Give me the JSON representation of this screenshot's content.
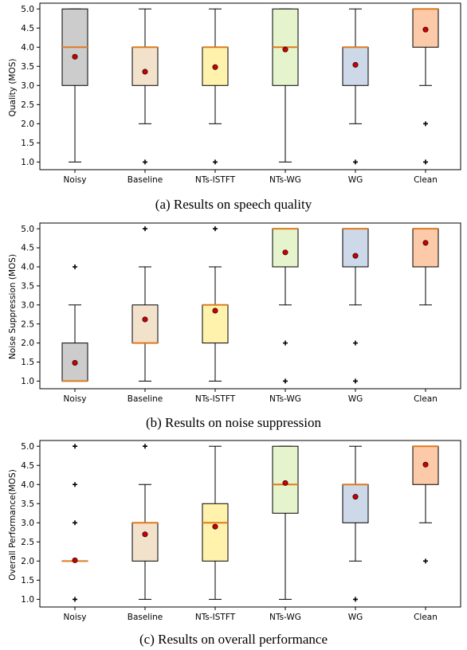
{
  "colors": {
    "box_fills": [
      "#cccccc",
      "#f2e2cc",
      "#fff2ad",
      "#e5f4cc",
      "#cdd8e8",
      "#fdcaa9"
    ],
    "median": "#e07a1c",
    "mean": "#cc0000",
    "outlier": "#000000"
  },
  "chart_data": [
    {
      "type": "box",
      "ylabel": "Quality (MOS)",
      "caption": "(a) Results on speech quality",
      "categories": [
        "Noisy",
        "Baseline",
        "NTs-ISTFT",
        "NTs-WG",
        "WG",
        "Clean"
      ],
      "ylim": [
        0.8,
        5.15
      ],
      "yticks": [
        "1.0",
        "1.5",
        "2.0",
        "2.5",
        "3.0",
        "3.5",
        "4.0",
        "4.5",
        "5.0"
      ],
      "grid": false,
      "boxes": [
        {
          "whislo": 1.0,
          "q1": 3.0,
          "med": 4.0,
          "q3": 5.0,
          "whishi": 5.0,
          "mean": 3.75,
          "fliers": []
        },
        {
          "whislo": 2.0,
          "q1": 3.0,
          "med": 4.0,
          "q3": 4.0,
          "whishi": 5.0,
          "mean": 3.36,
          "fliers": [
            1.0
          ]
        },
        {
          "whislo": 2.0,
          "q1": 3.0,
          "med": 4.0,
          "q3": 4.0,
          "whishi": 5.0,
          "mean": 3.48,
          "fliers": [
            1.0
          ]
        },
        {
          "whislo": 1.0,
          "q1": 3.0,
          "med": 4.0,
          "q3": 5.0,
          "whishi": 5.0,
          "mean": 3.94,
          "fliers": []
        },
        {
          "whislo": 2.0,
          "q1": 3.0,
          "med": 4.0,
          "q3": 4.0,
          "whishi": 5.0,
          "mean": 3.54,
          "fliers": [
            1.0
          ]
        },
        {
          "whislo": 3.0,
          "q1": 4.0,
          "med": 5.0,
          "q3": 5.0,
          "whishi": 5.0,
          "mean": 4.46,
          "fliers": [
            2.0,
            1.0
          ]
        }
      ]
    },
    {
      "type": "box",
      "ylabel": "Noise Suppression (MOS)",
      "caption": "(b) Results on noise suppression",
      "categories": [
        "Noisy",
        "Baseline",
        "NTs-ISTFT",
        "NTs-WG",
        "WG",
        "Clean"
      ],
      "ylim": [
        0.8,
        5.15
      ],
      "yticks": [
        "1.0",
        "1.5",
        "2.0",
        "2.5",
        "3.0",
        "3.5",
        "4.0",
        "4.5",
        "5.0"
      ],
      "grid": false,
      "boxes": [
        {
          "whislo": 1.0,
          "q1": 1.0,
          "med": 1.0,
          "q3": 2.0,
          "whishi": 3.0,
          "mean": 1.48,
          "fliers": [
            4.0
          ]
        },
        {
          "whislo": 1.0,
          "q1": 2.0,
          "med": 2.0,
          "q3": 3.0,
          "whishi": 4.0,
          "mean": 2.62,
          "fliers": [
            5.0
          ]
        },
        {
          "whislo": 1.0,
          "q1": 2.0,
          "med": 3.0,
          "q3": 3.0,
          "whishi": 4.0,
          "mean": 2.85,
          "fliers": [
            5.0
          ]
        },
        {
          "whislo": 3.0,
          "q1": 4.0,
          "med": 5.0,
          "q3": 5.0,
          "whishi": 5.0,
          "mean": 4.38,
          "fliers": [
            2.0,
            1.0
          ]
        },
        {
          "whislo": 3.0,
          "q1": 4.0,
          "med": 5.0,
          "q3": 5.0,
          "whishi": 5.0,
          "mean": 4.29,
          "fliers": [
            2.0,
            1.0
          ]
        },
        {
          "whislo": 3.0,
          "q1": 4.0,
          "med": 5.0,
          "q3": 5.0,
          "whishi": 5.0,
          "mean": 4.63,
          "fliers": []
        }
      ]
    },
    {
      "type": "box",
      "ylabel": "Overall Performance(MOS)",
      "caption": "(c) Results on overall performance",
      "categories": [
        "Noisy",
        "Baseline",
        "NTs-ISTFT",
        "NTs-WG",
        "WG",
        "Clean"
      ],
      "ylim": [
        0.8,
        5.15
      ],
      "yticks": [
        "1.0",
        "1.5",
        "2.0",
        "2.5",
        "3.0",
        "3.5",
        "4.0",
        "4.5",
        "5.0"
      ],
      "grid": false,
      "boxes": [
        {
          "whislo": 2.0,
          "q1": 2.0,
          "med": 2.0,
          "q3": 2.0,
          "whishi": 2.0,
          "mean": 2.02,
          "fliers": [
            5.0,
            4.0,
            3.0,
            1.0
          ]
        },
        {
          "whislo": 1.0,
          "q1": 2.0,
          "med": 3.0,
          "q3": 3.0,
          "whishi": 4.0,
          "mean": 2.7,
          "fliers": [
            5.0
          ]
        },
        {
          "whislo": 1.0,
          "q1": 2.0,
          "med": 3.0,
          "q3": 3.5,
          "whishi": 5.0,
          "mean": 2.9,
          "fliers": []
        },
        {
          "whislo": 1.0,
          "q1": 3.25,
          "med": 4.0,
          "q3": 5.0,
          "whishi": 5.0,
          "mean": 4.04,
          "fliers": []
        },
        {
          "whislo": 2.0,
          "q1": 3.0,
          "med": 4.0,
          "q3": 4.0,
          "whishi": 5.0,
          "mean": 3.68,
          "fliers": [
            1.0
          ]
        },
        {
          "whislo": 3.0,
          "q1": 4.0,
          "med": 5.0,
          "q3": 5.0,
          "whishi": 5.0,
          "mean": 4.52,
          "fliers": [
            2.0
          ]
        }
      ]
    }
  ]
}
